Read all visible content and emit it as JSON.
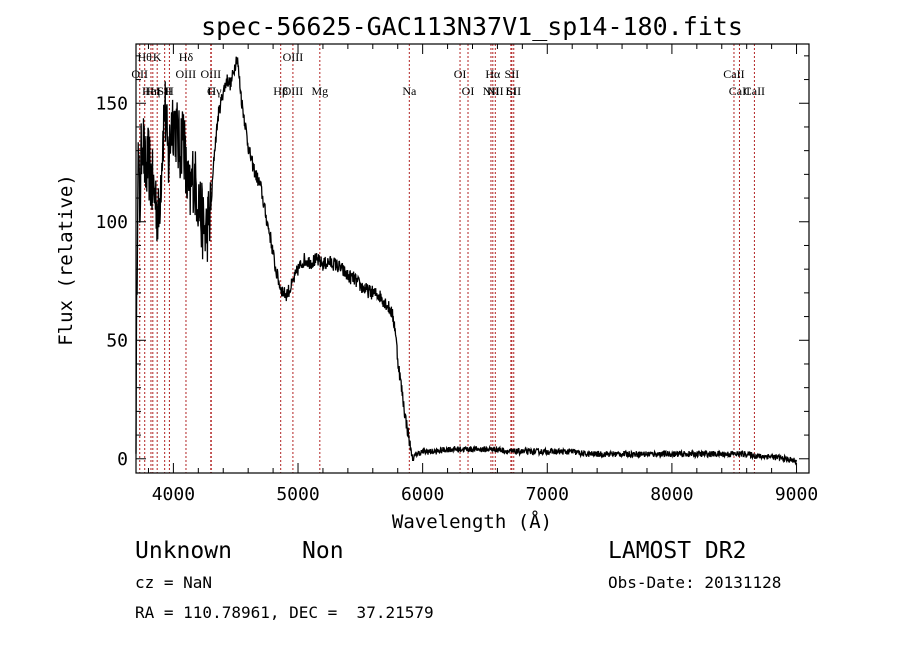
{
  "chart_data": {
    "type": "line",
    "title": "spec-56625-GAC113N37V1_sp14-180.fits",
    "xlabel": "Wavelength (Å)",
    "ylabel": "Flux (relative)",
    "xlim": [
      3700,
      9100
    ],
    "ylim": [
      -6,
      175
    ],
    "x_ticks": [
      4000,
      5000,
      6000,
      7000,
      8000,
      9000
    ],
    "y_ticks": [
      0,
      50,
      100,
      150
    ],
    "grid": false,
    "series": [
      {
        "color": "#000000",
        "anchors": [
          [
            3700,
            15
          ],
          [
            3715,
            130
          ],
          [
            3730,
            105
          ],
          [
            3750,
            140
          ],
          [
            3775,
            120
          ],
          [
            3800,
            125
          ],
          [
            3830,
            115
          ],
          [
            3860,
            110
          ],
          [
            3880,
            100
          ],
          [
            3900,
            120
          ],
          [
            3930,
            150
          ],
          [
            3960,
            125
          ],
          [
            3990,
            145
          ],
          [
            4020,
            140
          ],
          [
            4050,
            130
          ],
          [
            4080,
            140
          ],
          [
            4100,
            120
          ],
          [
            4130,
            110
          ],
          [
            4160,
            120
          ],
          [
            4200,
            110
          ],
          [
            4230,
            100
          ],
          [
            4260,
            95
          ],
          [
            4280,
            100
          ],
          [
            4300,
            105
          ],
          [
            4330,
            130
          ],
          [
            4360,
            145
          ],
          [
            4400,
            155
          ],
          [
            4430,
            160
          ],
          [
            4460,
            158
          ],
          [
            4490,
            165
          ],
          [
            4510,
            170
          ],
          [
            4530,
            160
          ],
          [
            4550,
            150
          ],
          [
            4580,
            140
          ],
          [
            4600,
            132
          ],
          [
            4630,
            125
          ],
          [
            4660,
            120
          ],
          [
            4700,
            115
          ],
          [
            4740,
            103
          ],
          [
            4780,
            93
          ],
          [
            4820,
            80
          ],
          [
            4860,
            72
          ],
          [
            4900,
            69
          ],
          [
            4940,
            72
          ],
          [
            4970,
            76
          ],
          [
            5000,
            80
          ],
          [
            5050,
            84
          ],
          [
            5100,
            83
          ],
          [
            5150,
            84
          ],
          [
            5200,
            82
          ],
          [
            5250,
            83
          ],
          [
            5300,
            82
          ],
          [
            5350,
            80
          ],
          [
            5400,
            77
          ],
          [
            5450,
            76
          ],
          [
            5500,
            73
          ],
          [
            5550,
            71
          ],
          [
            5600,
            70
          ],
          [
            5650,
            69
          ],
          [
            5700,
            66
          ],
          [
            5750,
            62
          ],
          [
            5780,
            55
          ],
          [
            5800,
            42
          ],
          [
            5830,
            30
          ],
          [
            5860,
            18
          ],
          [
            5880,
            12
          ],
          [
            5900,
            5
          ],
          [
            5920,
            0
          ],
          [
            5950,
            2
          ],
          [
            6000,
            3
          ],
          [
            6100,
            3
          ],
          [
            6200,
            4
          ],
          [
            6300,
            4
          ],
          [
            6400,
            4
          ],
          [
            6500,
            4
          ],
          [
            6600,
            4
          ],
          [
            6700,
            3
          ],
          [
            6800,
            3
          ],
          [
            6900,
            3
          ],
          [
            7000,
            3
          ],
          [
            7100,
            3
          ],
          [
            7200,
            3
          ],
          [
            7300,
            2
          ],
          [
            7400,
            2
          ],
          [
            7500,
            2
          ],
          [
            7600,
            2
          ],
          [
            7700,
            2
          ],
          [
            7800,
            2
          ],
          [
            7900,
            2
          ],
          [
            8000,
            2
          ],
          [
            8100,
            2
          ],
          [
            8200,
            2
          ],
          [
            8300,
            2
          ],
          [
            8400,
            2
          ],
          [
            8500,
            2
          ],
          [
            8600,
            2
          ],
          [
            8700,
            1
          ],
          [
            8800,
            1
          ],
          [
            8900,
            0
          ],
          [
            9000,
            -1
          ]
        ]
      }
    ],
    "lines": [
      {
        "row": 1,
        "x": 3730,
        "text": "OII",
        "marker": true
      },
      {
        "row": 0,
        "x": 3770,
        "text": "Hθ",
        "marker": true
      },
      {
        "row": 2,
        "x": 3820,
        "text": "HeI",
        "marker": true
      },
      {
        "row": 3,
        "x": 3835,
        "text": "Hη",
        "marker": true
      },
      {
        "row": 0,
        "x": 3870,
        "text": "K",
        "marker": true
      },
      {
        "row": 2,
        "x": 3930,
        "text": "SII",
        "marker": true
      },
      {
        "row": 3,
        "x": 3968,
        "text": "H",
        "marker": true
      },
      {
        "row": 0,
        "x": 4101,
        "text": "Hδ",
        "marker": true
      },
      {
        "row": 1,
        "x": 4100,
        "text": "OIII"
      },
      {
        "row": 1,
        "x": 4300,
        "text": "OIII",
        "marker": true
      },
      {
        "row": 2,
        "x": 4330,
        "text": "Hγ"
      },
      {
        "row": 3,
        "x": 4304,
        "text": "G",
        "marker": true
      },
      {
        "row": 0,
        "x": 4959,
        "text": "OIII",
        "marker": true
      },
      {
        "row": 2,
        "x": 4959,
        "text": "OIII"
      },
      {
        "row": 3,
        "x": 4861,
        "text": "Hβ",
        "marker": true
      },
      {
        "row": 3,
        "x": 5175,
        "text": "Mg",
        "marker": true
      },
      {
        "row": 2,
        "x": 5893,
        "text": "Na",
        "marker": true
      },
      {
        "row": 1,
        "x": 6300,
        "text": "OI",
        "marker": true
      },
      {
        "row": 3,
        "x": 6364,
        "text": "OI",
        "marker": true
      },
      {
        "row": 1,
        "x": 6563,
        "text": "Hα",
        "marker": true
      },
      {
        "row": 2,
        "x": 6548,
        "text": "NII",
        "marker": true
      },
      {
        "row": 3,
        "x": 6583,
        "text": "NII",
        "marker": true
      },
      {
        "row": 1,
        "x": 6716,
        "text": "SII",
        "marker": true
      },
      {
        "row": 2,
        "x": 6708,
        "text": "Li",
        "marker": true
      },
      {
        "row": 3,
        "x": 6731,
        "text": "SII",
        "marker": true
      },
      {
        "row": 1,
        "x": 8498,
        "text": "CaII",
        "marker": true
      },
      {
        "row": 2,
        "x": 8542,
        "text": "CaII",
        "marker": true
      },
      {
        "row": 3,
        "x": 8662,
        "text": "CaII",
        "marker": true
      }
    ]
  },
  "info": {
    "object_class": "Unknown",
    "subclass": "Non",
    "survey": "LAMOST DR2",
    "cz": "cz = NaN",
    "obs_date": "Obs-Date: 20131128",
    "coords": "RA = 110.78961, DEC =  37.21579"
  }
}
